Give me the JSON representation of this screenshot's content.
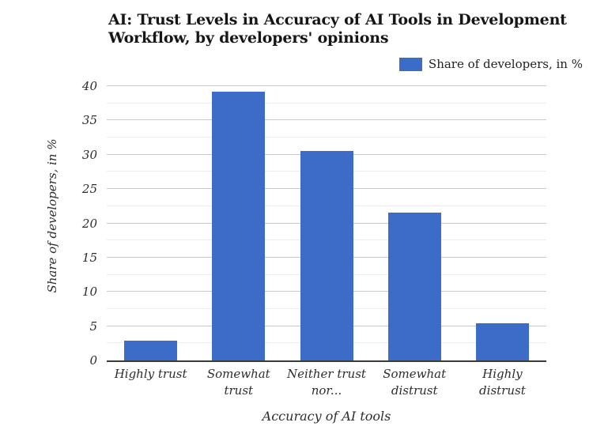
{
  "header": {
    "title_line1": "AI: Trust Levels in Accuracy of AI Tools in Development",
    "title_line2": "Workflow, by developers' opinions"
  },
  "chart_data": {
    "type": "bar",
    "title": "AI: Trust Levels in Accuracy of AI Tools in Development Workflow, by developers' opinions",
    "categories": [
      "Highly trust",
      "Somewhat trust",
      "Neither trust nor...",
      "Somewhat distrust",
      "Highly distrust"
    ],
    "category_label_lines": [
      [
        "Highly trust"
      ],
      [
        "Somewhat",
        "trust"
      ],
      [
        "Neither trust",
        "nor..."
      ],
      [
        "Somewhat",
        "distrust"
      ],
      [
        "Highly",
        "distrust"
      ]
    ],
    "series": [
      {
        "name": "Share of developers, in %",
        "values": [
          2.9,
          39.2,
          30.6,
          21.6,
          5.4
        ]
      }
    ],
    "xlabel": "Accuracy of AI tools",
    "ylabel": "Share of developers, in %",
    "ylim": [
      0,
      40
    ],
    "yticks": [
      0,
      5,
      10,
      15,
      20,
      25,
      30,
      35,
      40
    ],
    "ytick_step": 5,
    "minor_gridline_step": 2.5,
    "grid": true,
    "legend_position": "top-right",
    "bar_color": "#3a6cc8",
    "gridline_color_major": "#c9c9c9",
    "gridline_color_minor": "#ececec",
    "axis_line_color": "#3a3a3a"
  }
}
